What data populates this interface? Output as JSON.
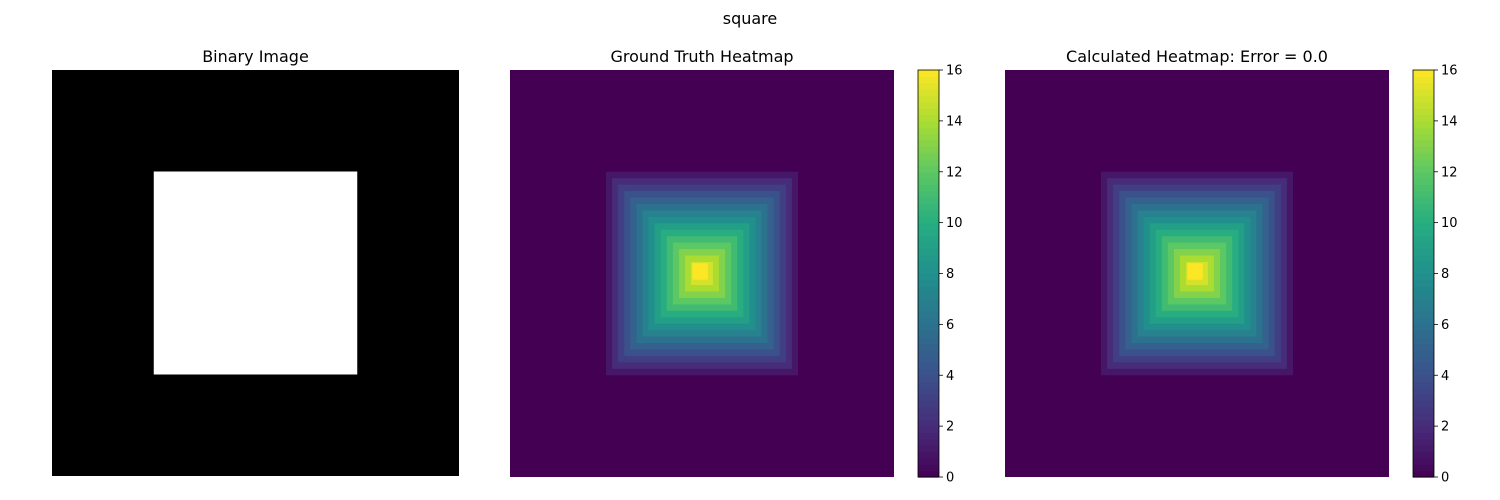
{
  "figure_title": "square",
  "chart_data": [
    {
      "type": "heatmap",
      "title": "Binary Image",
      "grid_size": 40,
      "colormap": "gray",
      "colorbar": false,
      "axes_visible": false,
      "value_range": [
        0,
        1
      ],
      "description": "binary mask: 0 everywhere except a centered white square of value 1",
      "regions": [
        {
          "row_range": [
            10,
            29
          ],
          "col_range": [
            10,
            29
          ],
          "value": 1
        }
      ],
      "background_value": 0
    },
    {
      "type": "heatmap",
      "title": "Ground Truth Heatmap",
      "grid_size": 40,
      "colormap": "viridis",
      "colorbar": true,
      "colorbar_range": [
        0,
        16
      ],
      "colorbar_ticks": [
        "0",
        "2",
        "4",
        "6",
        "8",
        "10",
        "12",
        "14",
        "16"
      ],
      "axes_visible": false,
      "values": "distance-to-background inside the square region (rows 10-29, cols 10-29), peak 16 at center, 0 outside",
      "levels": [
        1,
        2,
        3,
        4,
        5,
        6,
        7,
        8,
        9,
        10,
        11,
        12,
        13,
        14,
        15,
        16
      ]
    },
    {
      "type": "heatmap",
      "title": "Calculated Heatmap: Error = 0.0",
      "grid_size": 40,
      "colormap": "viridis",
      "colorbar": true,
      "colorbar_range": [
        0,
        16
      ],
      "colorbar_ticks": [
        "0",
        "2",
        "4",
        "6",
        "8",
        "10",
        "12",
        "14",
        "16"
      ],
      "axes_visible": false,
      "values": "identical to ground truth",
      "levels": [
        1,
        2,
        3,
        4,
        5,
        6,
        7,
        8,
        9,
        10,
        11,
        12,
        13,
        14,
        15,
        16
      ]
    }
  ]
}
